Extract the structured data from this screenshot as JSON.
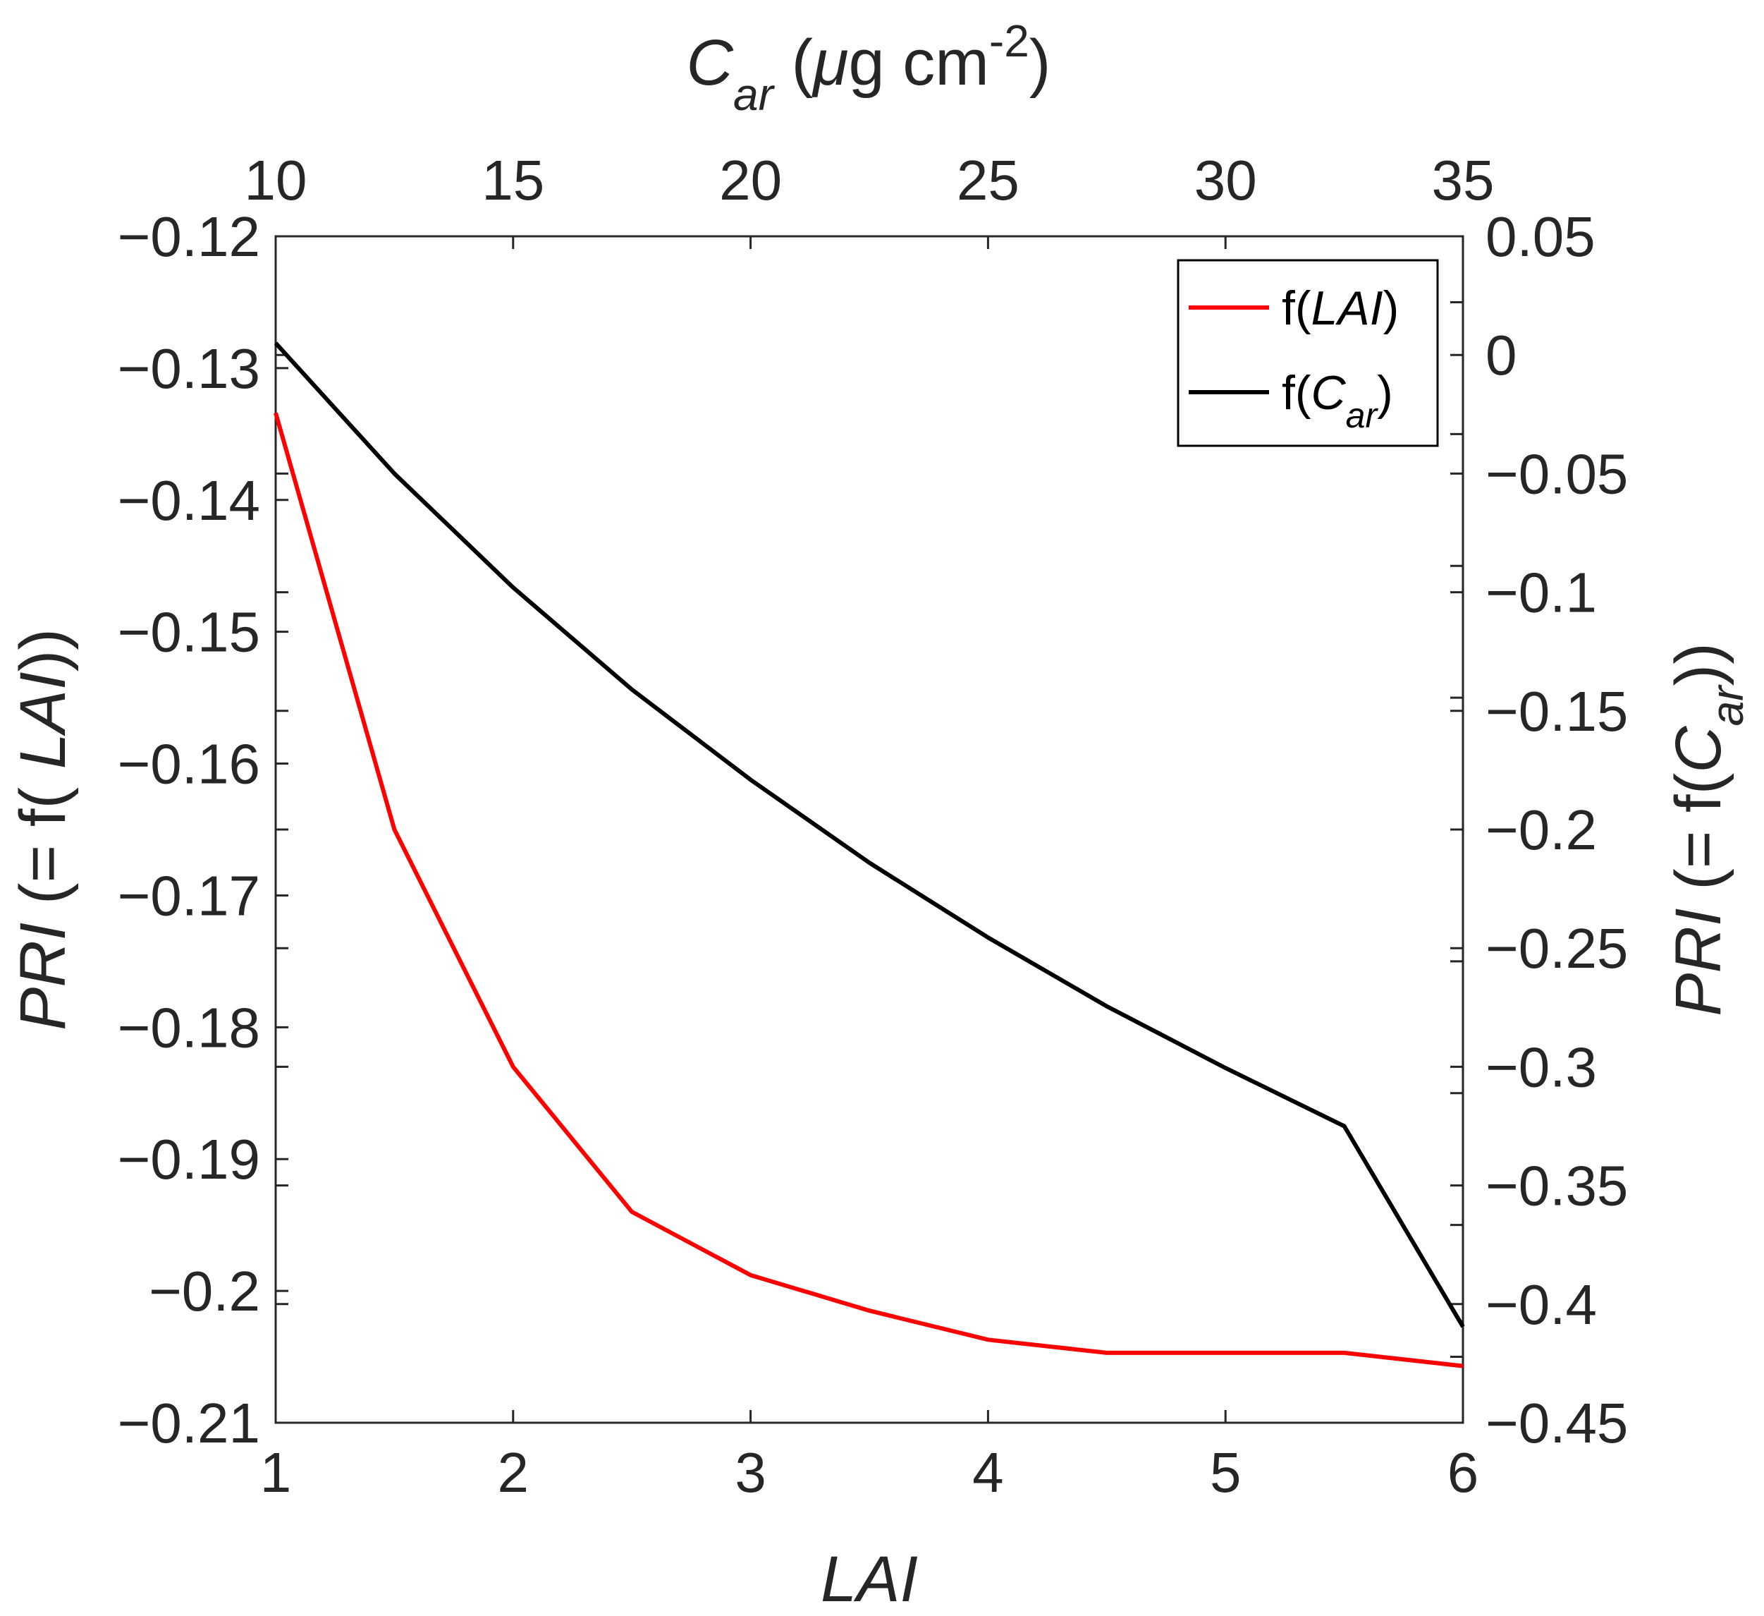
{
  "chart_data": {
    "type": "line",
    "bottom_axis": {
      "label": "LAI",
      "range": [
        1,
        6
      ],
      "ticks": [
        1,
        2,
        3,
        4,
        5,
        6
      ],
      "tick_labels": [
        "1",
        "2",
        "3",
        "4",
        "5",
        "6"
      ]
    },
    "top_axis": {
      "label_main": "C",
      "label_sub": "ar",
      "label_unit_pre": "(",
      "label_mu": "μ",
      "label_unit": "g cm",
      "label_exp": "-2",
      "label_unit_post": ")",
      "range": [
        10,
        35
      ],
      "ticks": [
        10,
        15,
        20,
        25,
        30,
        35
      ],
      "tick_labels": [
        "10",
        "15",
        "20",
        "25",
        "30",
        "35"
      ]
    },
    "left_axis": {
      "label_italic": "PRI",
      "label_pre": " (= f( ",
      "label_var": "LAI",
      "label_post": "))",
      "range": [
        -0.21,
        -0.12
      ],
      "ticks": [
        -0.12,
        -0.13,
        -0.14,
        -0.15,
        -0.16,
        -0.17,
        -0.18,
        -0.19,
        -0.2,
        -0.21
      ],
      "tick_labels": [
        "−0.12",
        "−0.13",
        "−0.14",
        "−0.15",
        "−0.16",
        "−0.17",
        "−0.18",
        "−0.19",
        "−0.2",
        "−0.21"
      ]
    },
    "right_axis": {
      "label_italic": "PRI",
      "label_pre": " (= f(",
      "label_var": "C",
      "label_sub": "ar",
      "label_post": "))",
      "range": [
        -0.45,
        0.05
      ],
      "ticks": [
        0.05,
        0,
        -0.05,
        -0.1,
        -0.15,
        -0.2,
        -0.25,
        -0.3,
        -0.35,
        -0.4,
        -0.45
      ],
      "tick_labels": [
        "0.05",
        "0",
        "−0.05",
        "−0.1",
        "−0.15",
        "−0.2",
        "−0.25",
        "−0.3",
        "−0.35",
        "−0.4",
        "−0.45"
      ]
    },
    "series": [
      {
        "name": "f(LAI)",
        "legend_pre": "f(",
        "legend_var": "LAI",
        "legend_sub": "",
        "legend_post": ")",
        "color": "#ff0000",
        "axes": "bottom-left",
        "x": [
          1,
          1.5,
          2,
          2.5,
          3,
          3.5,
          4,
          4.5,
          5,
          5.5,
          6
        ],
        "y": [
          -0.1334,
          -0.165,
          -0.183,
          -0.194,
          -0.1988,
          -0.2015,
          -0.2037,
          -0.2047,
          -0.2047,
          -0.2047,
          -0.2057
        ]
      },
      {
        "name": "f(Car)",
        "legend_pre": "f(",
        "legend_var": "C",
        "legend_sub": "ar",
        "legend_post": ")",
        "color": "#000000",
        "axes": "top-right",
        "x": [
          10,
          12.5,
          15,
          17.5,
          20,
          22.5,
          25,
          27.5,
          30,
          32.5,
          35
        ],
        "y": [
          0.005,
          -0.05,
          -0.098,
          -0.141,
          -0.179,
          -0.214,
          -0.2455,
          -0.2745,
          -0.3005,
          -0.325,
          -0.4095
        ]
      }
    ],
    "legend_position": "top-right",
    "grid": false
  }
}
